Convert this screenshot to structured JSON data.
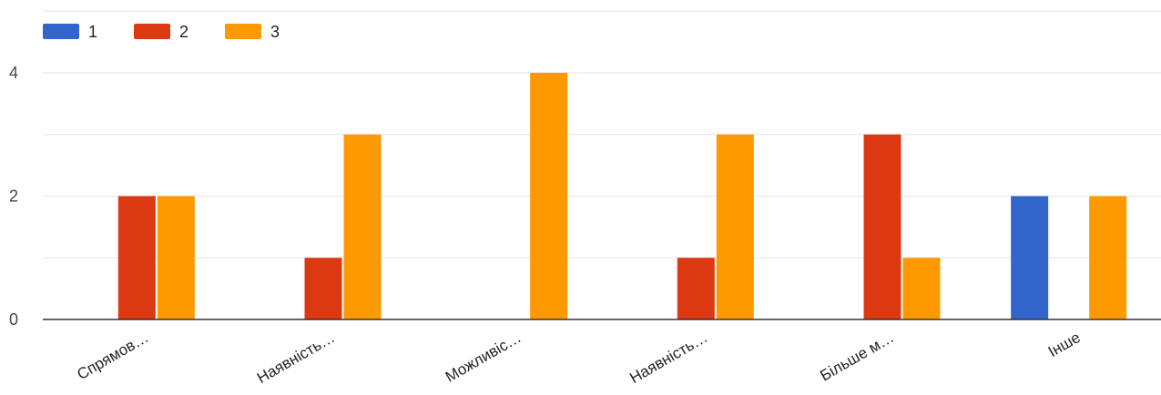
{
  "chart_data": {
    "type": "bar",
    "categories": [
      "Спрямов…",
      "Наявність…",
      "Можливіс…",
      "Наявність…",
      "Більше м…",
      "Інше"
    ],
    "series": [
      {
        "name": "1",
        "color": "#3366cc",
        "values": [
          0,
          0,
          0,
          0,
          0,
          2
        ]
      },
      {
        "name": "2",
        "color": "#dc3912",
        "values": [
          2,
          1,
          0,
          1,
          3,
          0
        ]
      },
      {
        "name": "3",
        "color": "#ff9900",
        "values": [
          2,
          3,
          4,
          3,
          1,
          2
        ]
      }
    ],
    "ylim": [
      0,
      5
    ],
    "yticks": [
      0,
      2,
      4
    ],
    "grid": true,
    "legend_position": "top-left"
  }
}
